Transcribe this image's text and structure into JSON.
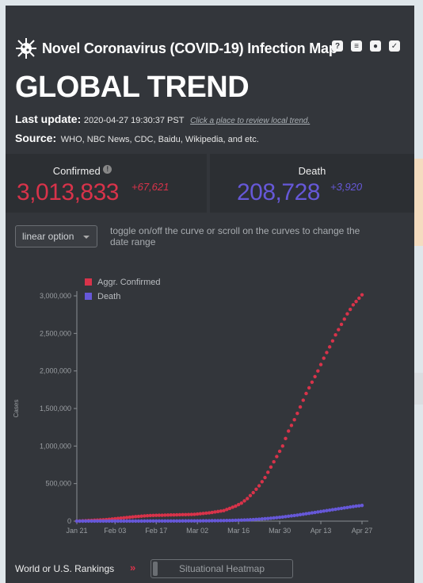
{
  "app": {
    "title": "Novel Coronavirus (COVID-19) Infection Map",
    "heading": "GLOBAL TREND",
    "icons": [
      "help-icon",
      "book-icon",
      "github-icon",
      "twitter-icon"
    ]
  },
  "update": {
    "label": "Last update:",
    "value": "2020-04-27 19:30:37 PST",
    "link": "Click a place to review local trend."
  },
  "source": {
    "label": "Source:",
    "value": "WHO, NBC News, CDC, Baidu, Wikipedia, and etc."
  },
  "stats": {
    "confirmed": {
      "label": "Confirmed",
      "value": "3,013,833",
      "increase": "+67,621",
      "color": "#d8334a"
    },
    "death": {
      "label": "Death",
      "value": "208,728",
      "increase": "+3,920",
      "color": "#6658d8"
    }
  },
  "controls": {
    "scale_select": "linear option",
    "hint": "toggle on/off the curve or scroll on the curves to change the date range"
  },
  "chart_data": {
    "type": "line",
    "ylabel": "Cases",
    "ylim": [
      0,
      3000000
    ],
    "y_ticks": [
      0,
      500000,
      1000000,
      1500000,
      2000000,
      2500000,
      3000000
    ],
    "y_tick_labels": [
      "0",
      "500,000",
      "1,000,000",
      "1,500,000",
      "2,000,000",
      "2,500,000",
      "3,000,000"
    ],
    "x_tick_labels": [
      "Jan 21",
      "Feb 03",
      "Feb 17",
      "Mar 02",
      "Mar 16",
      "Mar 30",
      "Apr 13",
      "Apr 27"
    ],
    "x_tick_days": [
      0,
      13,
      27,
      41,
      55,
      69,
      83,
      97
    ],
    "series": [
      {
        "name": "Aggr. Confirmed",
        "color": "#d8334a",
        "points": [
          [
            0,
            300
          ],
          [
            10,
            20000
          ],
          [
            20,
            60000
          ],
          [
            25,
            75000
          ],
          [
            30,
            80000
          ],
          [
            40,
            90000
          ],
          [
            45,
            110000
          ],
          [
            50,
            140000
          ],
          [
            52,
            170000
          ],
          [
            54,
            200000
          ],
          [
            56,
            240000
          ],
          [
            58,
            300000
          ],
          [
            60,
            380000
          ],
          [
            62,
            470000
          ],
          [
            64,
            580000
          ],
          [
            66,
            720000
          ],
          [
            68,
            860000
          ],
          [
            70,
            1000000
          ],
          [
            72,
            1200000
          ],
          [
            74,
            1350000
          ],
          [
            76,
            1520000
          ],
          [
            78,
            1700000
          ],
          [
            80,
            1850000
          ],
          [
            82,
            2000000
          ],
          [
            84,
            2170000
          ],
          [
            86,
            2320000
          ],
          [
            88,
            2480000
          ],
          [
            90,
            2620000
          ],
          [
            92,
            2760000
          ],
          [
            94,
            2880000
          ],
          [
            97,
            3013833
          ]
        ]
      },
      {
        "name": "Death",
        "color": "#6658d8",
        "points": [
          [
            0,
            0
          ],
          [
            20,
            1000
          ],
          [
            40,
            3000
          ],
          [
            50,
            7000
          ],
          [
            55,
            12000
          ],
          [
            60,
            20000
          ],
          [
            65,
            35000
          ],
          [
            70,
            55000
          ],
          [
            75,
            80000
          ],
          [
            80,
            110000
          ],
          [
            85,
            140000
          ],
          [
            90,
            170000
          ],
          [
            95,
            200000
          ],
          [
            97,
            208728
          ]
        ]
      }
    ]
  },
  "bottom": {
    "rankings_label": "World or U.S. Rankings",
    "chevrons": "»",
    "heatmap_button": "Situational Heatmap"
  }
}
